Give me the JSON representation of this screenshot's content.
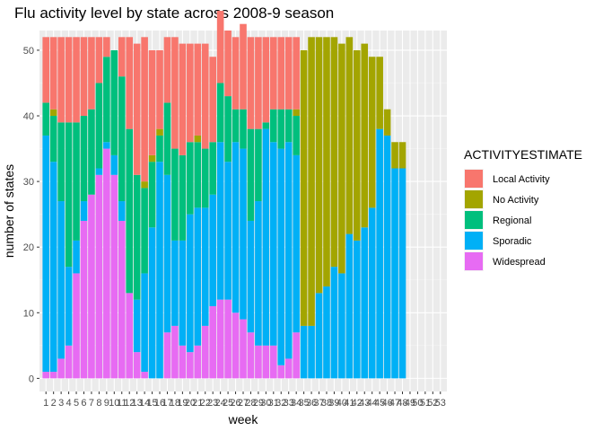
{
  "chart_data": {
    "type": "bar",
    "stacked": true,
    "title": "Flu activity level by state across 2008-9 season",
    "xlabel": "week",
    "ylabel": "number of states",
    "ylim": [
      -2,
      53
    ],
    "yticks": [
      0,
      10,
      20,
      30,
      40,
      50
    ],
    "grid": true,
    "legend_position": "right",
    "legend_title": "ACTIVITYESTIMATE",
    "categories": [
      "1",
      "2",
      "3",
      "4",
      "5",
      "6",
      "7",
      "8",
      "9",
      "10",
      "11",
      "12",
      "13",
      "14",
      "15",
      "16",
      "17",
      "18",
      "19",
      "20",
      "21",
      "22",
      "23",
      "24",
      "25",
      "26",
      "27",
      "28",
      "29",
      "30",
      "31",
      "32",
      "33",
      "34",
      "35",
      "36",
      "37",
      "38",
      "39",
      "40",
      "41",
      "42",
      "43",
      "44",
      "45",
      "46",
      "47",
      "48",
      "49",
      "50",
      "51",
      "52",
      "53"
    ],
    "series": [
      {
        "name": "Widespread",
        "color": "#E76BF3",
        "values": [
          1,
          1,
          3,
          5,
          16,
          24,
          28,
          31,
          35,
          31,
          24,
          13,
          4,
          1,
          0,
          0,
          7,
          8,
          5,
          4,
          5,
          8,
          11,
          12,
          12,
          10,
          9,
          7,
          5,
          5,
          5,
          2,
          3,
          7,
          0,
          0,
          0,
          0,
          0,
          0,
          0,
          0,
          0,
          0,
          0,
          0,
          0,
          0,
          0,
          0,
          0,
          0,
          0
        ]
      },
      {
        "name": "Sporadic",
        "color": "#00B0F6",
        "values": [
          36,
          32,
          24,
          12,
          5,
          3,
          0,
          1,
          1,
          3,
          3,
          0,
          8,
          15,
          23,
          33,
          24,
          13,
          16,
          21,
          21,
          18,
          17,
          24,
          21,
          26,
          26,
          17,
          22,
          33,
          31,
          33,
          33,
          27,
          8,
          8,
          13,
          14,
          17,
          16,
          22,
          21,
          23,
          26,
          38,
          37,
          32,
          32,
          0,
          0,
          0,
          0,
          0
        ]
      },
      {
        "name": "Regional",
        "color": "#00BF7D",
        "values": [
          5,
          7,
          12,
          22,
          18,
          13,
          13,
          13,
          13,
          16,
          19,
          25,
          19,
          13,
          10,
          4,
          11,
          14,
          13,
          11,
          10,
          9,
          8,
          9,
          10,
          5,
          6,
          14,
          11,
          1,
          5,
          6,
          5,
          6,
          0,
          0,
          0,
          0,
          0,
          0,
          0,
          0,
          0,
          0,
          0,
          0,
          0,
          0,
          0,
          0,
          0,
          0,
          0
        ]
      },
      {
        "name": "No Activity",
        "color": "#A3A500",
        "values": [
          0,
          1,
          0,
          0,
          0,
          0,
          0,
          0,
          0,
          0,
          0,
          0,
          0,
          1,
          1,
          1,
          0,
          0,
          0,
          0,
          1,
          0,
          0,
          0,
          0,
          0,
          0,
          0,
          0,
          0,
          0,
          0,
          0,
          1,
          42,
          44,
          39,
          38,
          35,
          35,
          30,
          29,
          28,
          23,
          11,
          4,
          4,
          4,
          0,
          0,
          0,
          0,
          0
        ]
      },
      {
        "name": "Local Activity",
        "color": "#F8766D",
        "values": [
          10,
          11,
          13,
          13,
          13,
          12,
          11,
          7,
          3,
          0,
          6,
          14,
          20,
          22,
          16,
          12,
          10,
          17,
          17,
          15,
          14,
          16,
          13,
          11,
          10,
          11,
          13,
          14,
          14,
          13,
          11,
          11,
          11,
          11,
          0,
          0,
          0,
          0,
          0,
          0,
          0,
          0,
          0,
          0,
          0,
          0,
          0,
          0,
          0,
          0,
          0,
          0,
          0
        ]
      }
    ],
    "legend_order": [
      "Local Activity",
      "No Activity",
      "Regional",
      "Sporadic",
      "Widespread"
    ]
  }
}
